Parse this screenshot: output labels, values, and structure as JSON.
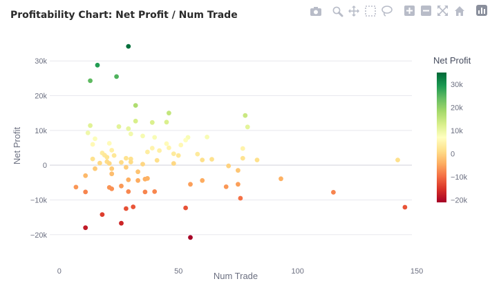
{
  "chart_data": {
    "type": "scatter",
    "title": "Profitability Chart: Net Profit / Num Trade",
    "xlabel": "Num Trade",
    "ylabel": "Net Profit",
    "xlim": [
      -4,
      152
    ],
    "ylim": [
      -27000,
      37000
    ],
    "x_ticks": [
      0,
      50,
      100,
      150
    ],
    "x_tick_labels": [
      "0",
      "50",
      "100",
      "150"
    ],
    "y_ticks": [
      -20000,
      -10000,
      0,
      10000,
      20000,
      30000
    ],
    "y_tick_labels": [
      "−20k",
      "−10k",
      "0",
      "10k",
      "20k",
      "30k"
    ],
    "grid": true,
    "colorscale": "RdYlGn",
    "colorbar": {
      "title": "Net Profit",
      "range": [
        -21000,
        35000
      ],
      "ticks": [
        -20000,
        -10000,
        0,
        10000,
        20000,
        30000
      ],
      "tick_labels": [
        "−20k",
        "−10k",
        "0",
        "10k",
        "20k",
        "30k"
      ]
    },
    "points": [
      [
        29,
        34200
      ],
      [
        16,
        28800
      ],
      [
        24,
        25500
      ],
      [
        13,
        24300
      ],
      [
        32,
        17200
      ],
      [
        46,
        15000
      ],
      [
        78,
        14300
      ],
      [
        32,
        12700
      ],
      [
        39,
        12300
      ],
      [
        45,
        12400
      ],
      [
        13,
        11400
      ],
      [
        25,
        11100
      ],
      [
        29,
        10500
      ],
      [
        79,
        11000
      ],
      [
        12,
        9300
      ],
      [
        30,
        9000
      ],
      [
        35,
        8400
      ],
      [
        40,
        8000
      ],
      [
        15,
        7600
      ],
      [
        54,
        8000
      ],
      [
        62,
        8100
      ],
      [
        53,
        7200
      ],
      [
        21,
        6300
      ],
      [
        14,
        6000
      ],
      [
        45,
        6200
      ],
      [
        51,
        5800
      ],
      [
        46,
        5000
      ],
      [
        77,
        4800
      ],
      [
        39,
        4900
      ],
      [
        22,
        4300
      ],
      [
        42,
        4200
      ],
      [
        37,
        3800
      ],
      [
        18,
        3500
      ],
      [
        48,
        3300
      ],
      [
        19,
        2900
      ],
      [
        23,
        2800
      ],
      [
        20,
        2300
      ],
      [
        28,
        2000
      ],
      [
        30,
        1800
      ],
      [
        41,
        1400
      ],
      [
        50,
        2800
      ],
      [
        58,
        3200
      ],
      [
        77,
        2000
      ],
      [
        60,
        1500
      ],
      [
        64,
        1700
      ],
      [
        83,
        1500
      ],
      [
        142,
        1500
      ],
      [
        14,
        1800
      ],
      [
        20,
        1000
      ],
      [
        21,
        500
      ],
      [
        17,
        600
      ],
      [
        26,
        800
      ],
      [
        30,
        900
      ],
      [
        35,
        300
      ],
      [
        48,
        500
      ],
      [
        71,
        -200
      ],
      [
        15,
        -1000
      ],
      [
        22,
        -1000
      ],
      [
        28,
        -600
      ],
      [
        33,
        -1900
      ],
      [
        75,
        -1500
      ],
      [
        11,
        -3000
      ],
      [
        22,
        -2500
      ],
      [
        29,
        -4200
      ],
      [
        33,
        -4400
      ],
      [
        36,
        -4000
      ],
      [
        37,
        -3800
      ],
      [
        60,
        -4400
      ],
      [
        55,
        -5500
      ],
      [
        70,
        -6200
      ],
      [
        75,
        -5500
      ],
      [
        93,
        -3900
      ],
      [
        7,
        -6300
      ],
      [
        21,
        -6400
      ],
      [
        22,
        -6800
      ],
      [
        26,
        -6000
      ],
      [
        11,
        -7700
      ],
      [
        29,
        -7600
      ],
      [
        36,
        -7700
      ],
      [
        40,
        -7600
      ],
      [
        76,
        -9500
      ],
      [
        115,
        -7800
      ],
      [
        31,
        -12000
      ],
      [
        28,
        -12500
      ],
      [
        53,
        -12300
      ],
      [
        145,
        -12100
      ],
      [
        18,
        -14200
      ],
      [
        26,
        -16700
      ],
      [
        11,
        -18000
      ],
      [
        55,
        -20800
      ]
    ]
  }
}
